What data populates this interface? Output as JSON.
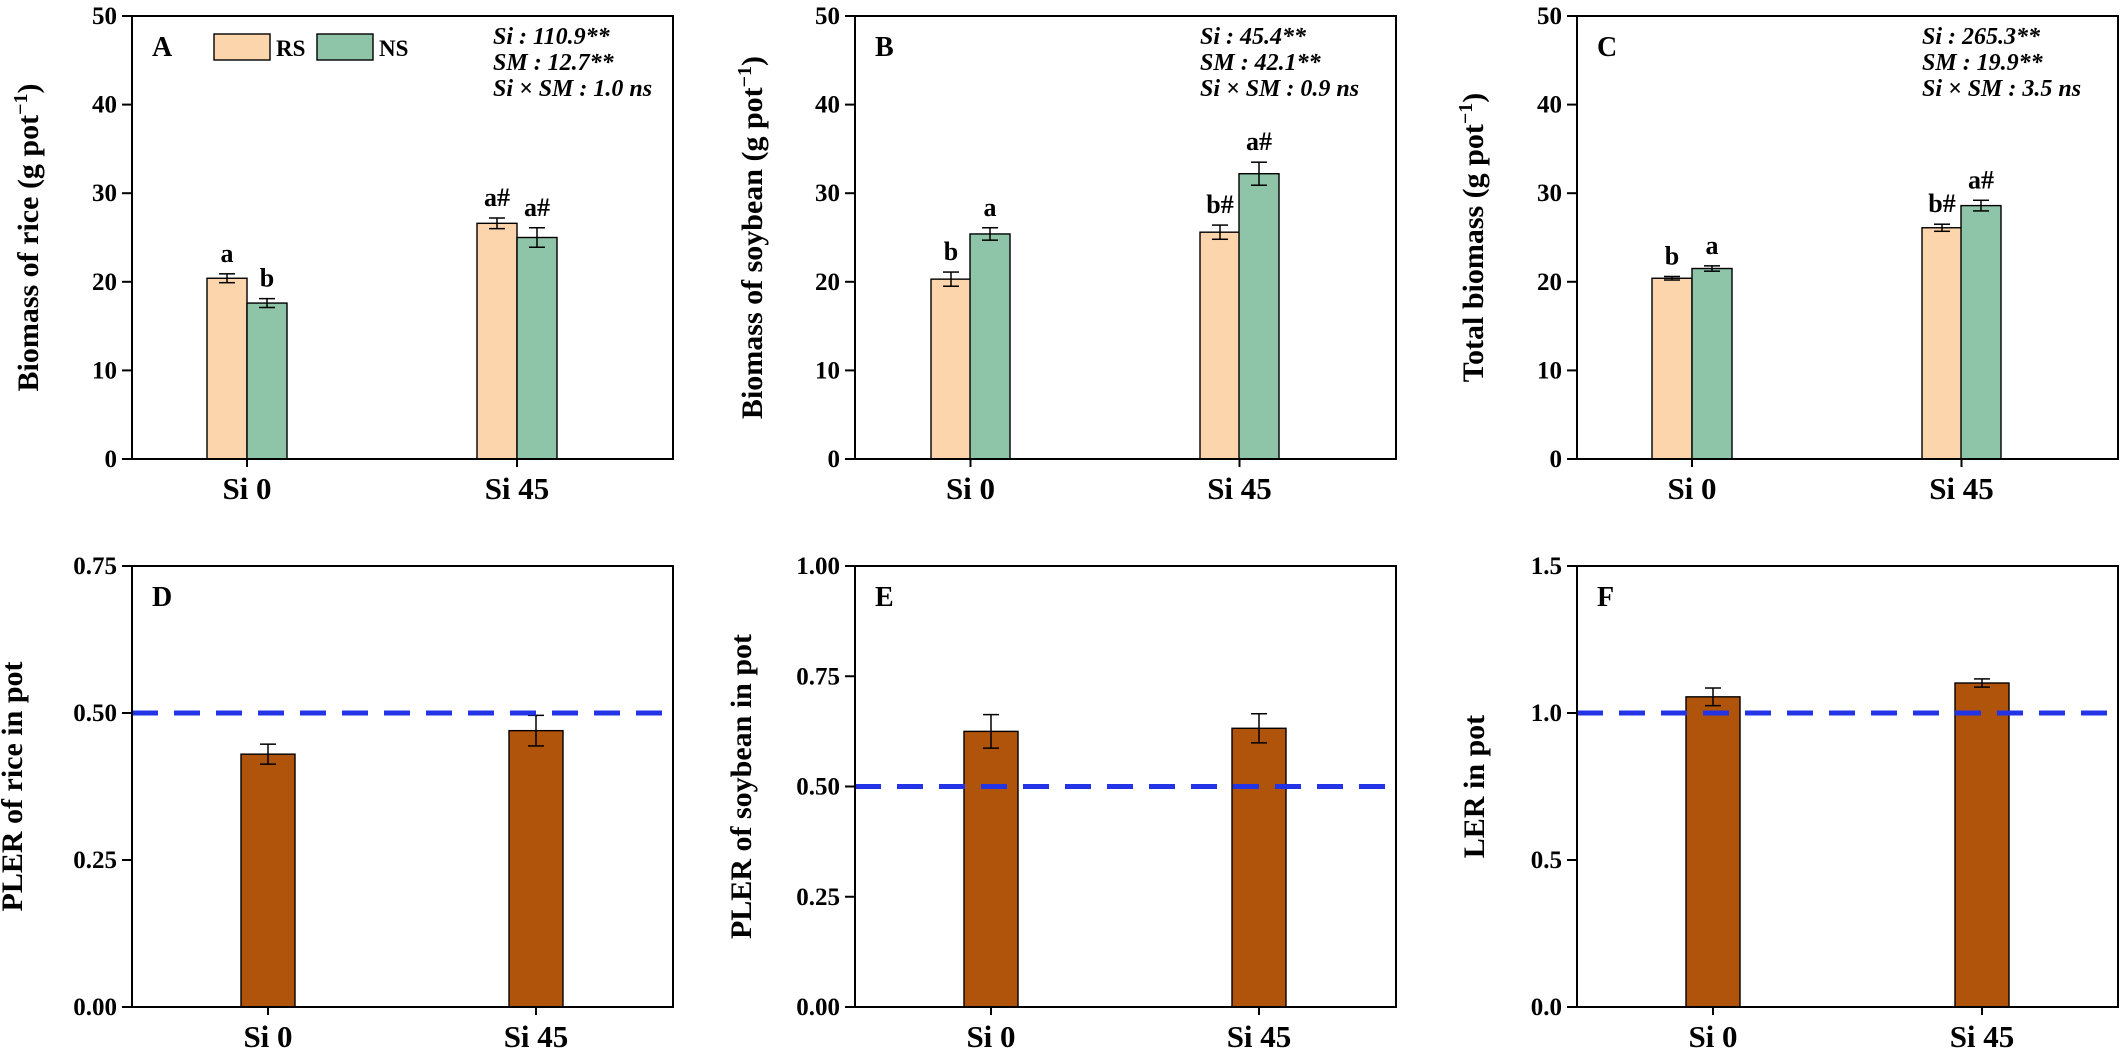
{
  "colors": {
    "rs": "#FDD5AD",
    "ns": "#8EC4A8",
    "pler": "#B0530B",
    "ref_line": "#2333E6",
    "axis": "#000000"
  },
  "legend": {
    "items": [
      "RS",
      "NS"
    ]
  },
  "chart_data": [
    {
      "id": "A",
      "type": "bar",
      "label": "A",
      "ylabel_main": "Biomass of rice (g pot",
      "ylabel_sup": "−1",
      "ylabel_end": ")",
      "ylim": [
        0,
        50
      ],
      "yticks": [
        0,
        10,
        20,
        30,
        40,
        50
      ],
      "ytick_labels": [
        "0",
        "10",
        "20",
        "30",
        "40",
        "50"
      ],
      "categories": [
        "Si 0",
        "Si 45"
      ],
      "series": [
        {
          "name": "RS",
          "color": "#FDD5AD",
          "values": [
            20.4,
            26.6
          ],
          "errors": [
            0.5,
            0.6
          ],
          "letters": [
            "a",
            "a#"
          ]
        },
        {
          "name": "NS",
          "color": "#8EC4A8",
          "values": [
            17.6,
            25.0
          ],
          "errors": [
            0.5,
            1.1
          ],
          "letters": [
            "b",
            "a#"
          ]
        }
      ],
      "stats": [
        "Si : 110.9**",
        "SM : 12.7**",
        "Si × SM : 1.0 ns"
      ],
      "show_legend": true
    },
    {
      "id": "B",
      "type": "bar",
      "label": "B",
      "ylabel_main": "Biomass of soybean (g pot",
      "ylabel_sup": "−1",
      "ylabel_end": ")",
      "ylim": [
        0,
        50
      ],
      "yticks": [
        0,
        10,
        20,
        30,
        40,
        50
      ],
      "ytick_labels": [
        "0",
        "10",
        "20",
        "30",
        "40",
        "50"
      ],
      "categories": [
        "Si 0",
        "Si 45"
      ],
      "series": [
        {
          "name": "RS",
          "color": "#FDD5AD",
          "values": [
            20.3,
            25.6
          ],
          "errors": [
            0.8,
            0.8
          ],
          "letters": [
            "b",
            "b#"
          ]
        },
        {
          "name": "NS",
          "color": "#8EC4A8",
          "values": [
            25.4,
            32.2
          ],
          "errors": [
            0.7,
            1.3
          ],
          "letters": [
            "a",
            "a#"
          ]
        }
      ],
      "stats": [
        "Si : 45.4**",
        "SM : 42.1**",
        "Si × SM : 0.9 ns"
      ],
      "show_legend": false
    },
    {
      "id": "C",
      "type": "bar",
      "label": "C",
      "ylabel_main": "Total biomass (g pot",
      "ylabel_sup": "−1",
      "ylabel_end": ")",
      "ylim": [
        0,
        50
      ],
      "yticks": [
        0,
        10,
        20,
        30,
        40,
        50
      ],
      "ytick_labels": [
        "0",
        "10",
        "20",
        "30",
        "40",
        "50"
      ],
      "categories": [
        "Si 0",
        "Si 45"
      ],
      "series": [
        {
          "name": "RS",
          "color": "#FDD5AD",
          "values": [
            20.4,
            26.1
          ],
          "errors": [
            0.2,
            0.4
          ],
          "letters": [
            "b",
            "b#"
          ]
        },
        {
          "name": "NS",
          "color": "#8EC4A8",
          "values": [
            21.5,
            28.6
          ],
          "errors": [
            0.3,
            0.6
          ],
          "letters": [
            "a",
            "a#"
          ]
        }
      ],
      "stats": [
        "Si : 265.3**",
        "SM : 19.9**",
        "Si × SM : 3.5 ns"
      ],
      "show_legend": false
    },
    {
      "id": "D",
      "type": "bar",
      "label": "D",
      "ylabel_main": "PLER of rice in pot",
      "ylabel_sup": "",
      "ylabel_end": "",
      "ylim": [
        0,
        0.75
      ],
      "yticks": [
        0,
        0.25,
        0.5,
        0.75
      ],
      "ytick_labels": [
        "0.00",
        "0.25",
        "0.50",
        "0.75"
      ],
      "categories": [
        "Si 0",
        "Si 45"
      ],
      "series": [
        {
          "color": "#B0530B",
          "values": [
            0.43,
            0.47
          ],
          "errors": [
            0.017,
            0.026
          ],
          "letters": [
            "",
            ""
          ]
        }
      ],
      "reference_line": 0.5,
      "stats": [],
      "show_legend": false
    },
    {
      "id": "E",
      "type": "bar",
      "label": "E",
      "ylabel_main": "PLER of soybean in pot",
      "ylabel_sup": "",
      "ylabel_end": "",
      "ylim": [
        0,
        1.0
      ],
      "yticks": [
        0,
        0.25,
        0.5,
        0.75,
        1.0
      ],
      "ytick_labels": [
        "0.00",
        "0.25",
        "0.50",
        "0.75",
        "1.00"
      ],
      "categories": [
        "Si 0",
        "Si 45"
      ],
      "series": [
        {
          "color": "#B0530B",
          "values": [
            0.625,
            0.632
          ],
          "errors": [
            0.038,
            0.033
          ],
          "letters": [
            "",
            ""
          ]
        }
      ],
      "reference_line": 0.5,
      "stats": [],
      "show_legend": false
    },
    {
      "id": "F",
      "type": "bar",
      "label": "F",
      "ylabel_main": "LER in pot",
      "ylabel_sup": "",
      "ylabel_end": "",
      "ylim": [
        0,
        1.5
      ],
      "yticks": [
        0,
        0.5,
        1.0,
        1.5
      ],
      "ytick_labels": [
        "0.0",
        "0.5",
        "1.0",
        "1.5"
      ],
      "categories": [
        "Si 0",
        "Si 45"
      ],
      "series": [
        {
          "color": "#B0530B",
          "values": [
            1.055,
            1.102
          ],
          "errors": [
            0.03,
            0.014
          ],
          "letters": [
            "",
            ""
          ]
        }
      ],
      "reference_line": 1.0,
      "stats": [],
      "show_legend": false
    }
  ]
}
